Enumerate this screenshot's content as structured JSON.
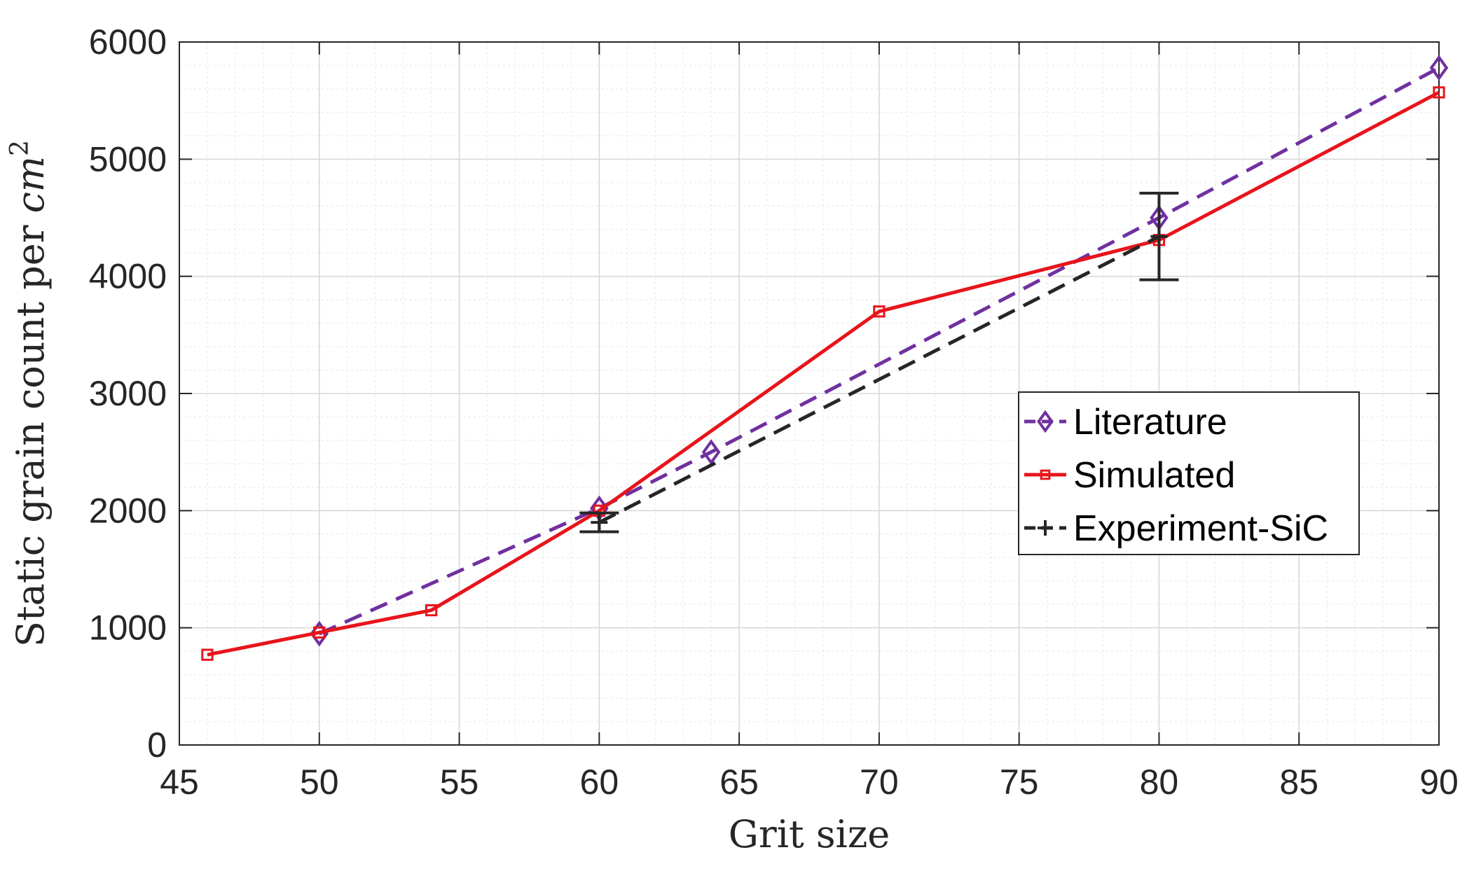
{
  "chart_data": {
    "type": "line",
    "xlabel": "Grit size",
    "ylabel": "Static grain count per ",
    "ylabel_math": "cm",
    "ylabel_sup": "2",
    "xlim": [
      45,
      90
    ],
    "ylim": [
      0,
      6000
    ],
    "xticks": [
      45,
      50,
      55,
      60,
      65,
      70,
      75,
      80,
      85,
      90
    ],
    "yticks": [
      0,
      1000,
      2000,
      3000,
      4000,
      5000,
      6000
    ],
    "grid": true,
    "minor_grid": true,
    "legend_position": "center-right",
    "series": [
      {
        "name": "Literature",
        "color": "#7030A0",
        "line_style": "dashed",
        "marker": "diamond",
        "x": [
          50,
          60,
          64,
          80,
          90
        ],
        "y": [
          950,
          2020,
          2500,
          4500,
          5780
        ]
      },
      {
        "name": "Simulated",
        "color": "#E8141B",
        "line_style": "solid",
        "marker": "square",
        "x": [
          46,
          50,
          54,
          60,
          70,
          80,
          90
        ],
        "y": [
          770,
          960,
          1150,
          2000,
          3700,
          4310,
          5570
        ]
      },
      {
        "name": "Experiment-SiC",
        "color": "#262626",
        "line_style": "dashed",
        "marker": "plus",
        "x": [
          60,
          80
        ],
        "y": [
          1900,
          4340
        ],
        "error": [
          80,
          370
        ]
      }
    ]
  }
}
